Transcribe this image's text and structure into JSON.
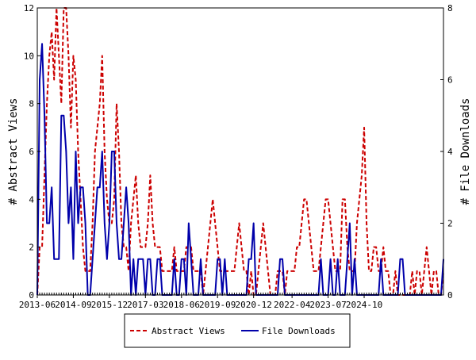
{
  "chart_data": {
    "type": "line",
    "ylabel_left": "# Abstract Views",
    "ylabel_right": "# File Downloads",
    "ylim_left": [
      0,
      12
    ],
    "ylim_right": [
      0,
      8
    ],
    "yticks_left": [
      "0",
      "2",
      "4",
      "6",
      "8",
      "10",
      "12"
    ],
    "yticks_right": [
      "0",
      "2",
      "4",
      "6",
      "8"
    ],
    "xlim": [
      0,
      169
    ],
    "xticks": [
      {
        "label": "2013-06",
        "x": 0
      },
      {
        "label": "2014-09",
        "x": 15
      },
      {
        "label": "2015-12",
        "x": 30
      },
      {
        "label": "2017-03",
        "x": 45
      },
      {
        "label": "2018-06",
        "x": 60
      },
      {
        "label": "2019-09",
        "x": 75
      },
      {
        "label": "2020-12",
        "x": 90
      },
      {
        "label": "2022-04",
        "x": 106
      },
      {
        "label": "2023-07",
        "x": 121
      },
      {
        "label": "2024-10",
        "x": 136
      }
    ],
    "grid": false,
    "legend_position": "bottom-center",
    "series": [
      {
        "name": "Abstract Views",
        "axis": "left",
        "color": "#cc0000",
        "dash": "dashed",
        "values": [
          0,
          2,
          2,
          5,
          8,
          10,
          11,
          9,
          12,
          10,
          8,
          12,
          12,
          10,
          7,
          10,
          9,
          6,
          4,
          2,
          1,
          1,
          1,
          3,
          6,
          7,
          8,
          10,
          6,
          4,
          3,
          3,
          4,
          8,
          6,
          3,
          2,
          2,
          1,
          3,
          4,
          5,
          3,
          2,
          2,
          2,
          3,
          5,
          3,
          2,
          2,
          2,
          1,
          1,
          1,
          1,
          1,
          2,
          1,
          1,
          1,
          1,
          2,
          2,
          2,
          1,
          1,
          1,
          1,
          0,
          1,
          2,
          3,
          4,
          3,
          2,
          1,
          1,
          1,
          1,
          1,
          1,
          1,
          2,
          3,
          2,
          1,
          1,
          0,
          1,
          0,
          0,
          1,
          2,
          3,
          2,
          1,
          0,
          0,
          0,
          1,
          1,
          1,
          0,
          1,
          1,
          1,
          1,
          2,
          2,
          3,
          4,
          4,
          3,
          2,
          1,
          1,
          1,
          2,
          3,
          4,
          4,
          3,
          2,
          1,
          1,
          1,
          4,
          4,
          2,
          1,
          1,
          1,
          3,
          4,
          5,
          7,
          3,
          1,
          1,
          2,
          2,
          1,
          1,
          2,
          1,
          1,
          0,
          0,
          1,
          0,
          0,
          0,
          0,
          0,
          0,
          1,
          0,
          1,
          1,
          0,
          1,
          2,
          1,
          0,
          1,
          1,
          0,
          0,
          1
        ]
      },
      {
        "name": "File Downloads",
        "axis": "right",
        "color": "#0000aa",
        "dash": "solid",
        "values": [
          0,
          6,
          7,
          5,
          2,
          2,
          3,
          1,
          1,
          1,
          5,
          5,
          4,
          2,
          3,
          1,
          4,
          2,
          3,
          3,
          2,
          0,
          0,
          1,
          2,
          3,
          3,
          4,
          2,
          1,
          2,
          4,
          4,
          2,
          1,
          1,
          2,
          3,
          2,
          0,
          1,
          0,
          1,
          1,
          1,
          0,
          1,
          1,
          0,
          0,
          1,
          1,
          0,
          0,
          0,
          0,
          0,
          1,
          0,
          0,
          1,
          1,
          0,
          2,
          1,
          0,
          0,
          0,
          1,
          0,
          0,
          0,
          0,
          0,
          0,
          1,
          1,
          0,
          1,
          0,
          0,
          0,
          0,
          0,
          0,
          0,
          0,
          0,
          1,
          1,
          2,
          0,
          0,
          0,
          0,
          0,
          0,
          0,
          0,
          0,
          0,
          1,
          1,
          0,
          0,
          0,
          0,
          0,
          0,
          0,
          0,
          0,
          0,
          0,
          0,
          0,
          0,
          0,
          1,
          0,
          0,
          0,
          1,
          0,
          0,
          1,
          0,
          0,
          0,
          1,
          2,
          0,
          1,
          0,
          0,
          0,
          0,
          0,
          0,
          0,
          0,
          0,
          0,
          1,
          0,
          0,
          0,
          0,
          0,
          0,
          0,
          1,
          1,
          0,
          0,
          0,
          0,
          0,
          0,
          0,
          0,
          0,
          0,
          0,
          0,
          0,
          0,
          0,
          0,
          1
        ]
      }
    ]
  }
}
